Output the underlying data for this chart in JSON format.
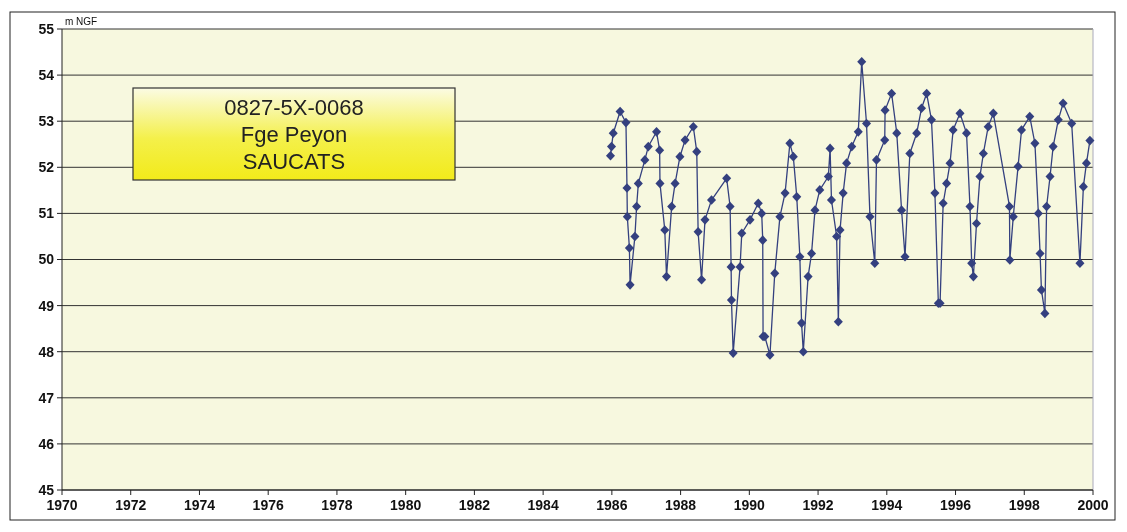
{
  "chart_data": {
    "type": "line",
    "ylabel": "m NGF",
    "annotations": [
      "0827-5X-0068",
      "Fge Peyon",
      "SAUCATS"
    ],
    "xlim": [
      1970,
      2000
    ],
    "xticks": [
      1970,
      1972,
      1974,
      1976,
      1978,
      1980,
      1982,
      1984,
      1986,
      1988,
      1990,
      1992,
      1994,
      1996,
      1998,
      2000
    ],
    "ylim": [
      45,
      55
    ],
    "yticks": [
      45,
      46,
      47,
      48,
      49,
      50,
      51,
      52,
      53,
      54,
      55
    ],
    "grid": "y",
    "marker": "diamond",
    "line_style": "solid",
    "series": [
      {
        "color": "#34407f",
        "x": [
          1985.96,
          1985.99,
          1986.04,
          1986.24,
          1986.41,
          1986.44,
          1986.45,
          1986.51,
          1986.53,
          1986.67,
          1986.72,
          1986.77,
          1986.96,
          1987.06,
          1987.3,
          1987.39,
          1987.4,
          1987.54,
          1987.59,
          1987.74,
          1987.84,
          1987.98,
          1988.13,
          1988.37,
          1988.47,
          1988.51,
          1988.61,
          1988.71,
          1988.9,
          1989.34,
          1989.44,
          1989.47,
          1989.48,
          1989.53,
          1989.73,
          1989.78,
          1990.02,
          1990.26,
          1990.36,
          1990.39,
          1990.4,
          1990.45,
          1990.6,
          1990.74,
          1990.89,
          1991.04,
          1991.18,
          1991.28,
          1991.38,
          1991.47,
          1991.52,
          1991.57,
          1991.71,
          1991.81,
          1991.91,
          1992.05,
          1992.3,
          1992.35,
          1992.39,
          1992.54,
          1992.59,
          1992.64,
          1992.73,
          1992.83,
          1992.98,
          1993.17,
          1993.27,
          1993.41,
          1993.51,
          1993.65,
          1993.7,
          1993.94,
          1993.95,
          1994.14,
          1994.29,
          1994.43,
          1994.53,
          1994.67,
          1994.87,
          1995.01,
          1995.16,
          1995.3,
          1995.4,
          1995.5,
          1995.55,
          1995.64,
          1995.74,
          1995.84,
          1995.93,
          1996.13,
          1996.32,
          1996.42,
          1996.47,
          1996.52,
          1996.61,
          1996.71,
          1996.81,
          1996.95,
          1997.1,
          1997.57,
          1997.58,
          1997.68,
          1997.82,
          1997.92,
          1998.16,
          1998.31,
          1998.41,
          1998.46,
          1998.5,
          1998.6,
          1998.65,
          1998.75,
          1998.84,
          1998.99,
          1999.13,
          1999.38,
          1999.62,
          1999.72,
          1999.81,
          1999.91
        ],
        "values": [
          52.25,
          52.45,
          52.74,
          53.21,
          52.97,
          51.55,
          50.93,
          50.25,
          49.45,
          50.5,
          51.15,
          51.65,
          52.16,
          52.45,
          52.77,
          52.37,
          51.65,
          50.64,
          49.63,
          51.15,
          51.65,
          52.23,
          52.59,
          52.88,
          52.34,
          50.6,
          49.56,
          50.86,
          51.29,
          51.76,
          51.15,
          49.84,
          49.12,
          47.97,
          49.84,
          50.57,
          50.86,
          51.22,
          51.0,
          50.42,
          48.33,
          48.33,
          47.93,
          49.7,
          50.93,
          51.44,
          52.52,
          52.23,
          51.36,
          50.06,
          48.62,
          48.0,
          49.63,
          50.13,
          51.07,
          51.51,
          51.8,
          52.41,
          51.29,
          50.5,
          48.65,
          50.64,
          51.44,
          52.09,
          52.45,
          52.77,
          54.29,
          52.95,
          50.93,
          49.92,
          52.16,
          52.59,
          53.24,
          53.6,
          52.74,
          51.07,
          50.06,
          52.3,
          52.74,
          53.28,
          53.6,
          53.03,
          51.44,
          49.05,
          49.05,
          51.22,
          51.65,
          52.09,
          52.81,
          53.17,
          52.74,
          51.15,
          49.92,
          49.63,
          50.78,
          51.8,
          52.3,
          52.88,
          53.17,
          51.15,
          49.99,
          50.93,
          52.02,
          52.81,
          53.1,
          52.52,
          51.0,
          50.13,
          49.34,
          48.83,
          51.15,
          51.8,
          52.45,
          53.03,
          53.39,
          52.95,
          49.92,
          51.58,
          52.09,
          52.58
        ]
      }
    ]
  }
}
